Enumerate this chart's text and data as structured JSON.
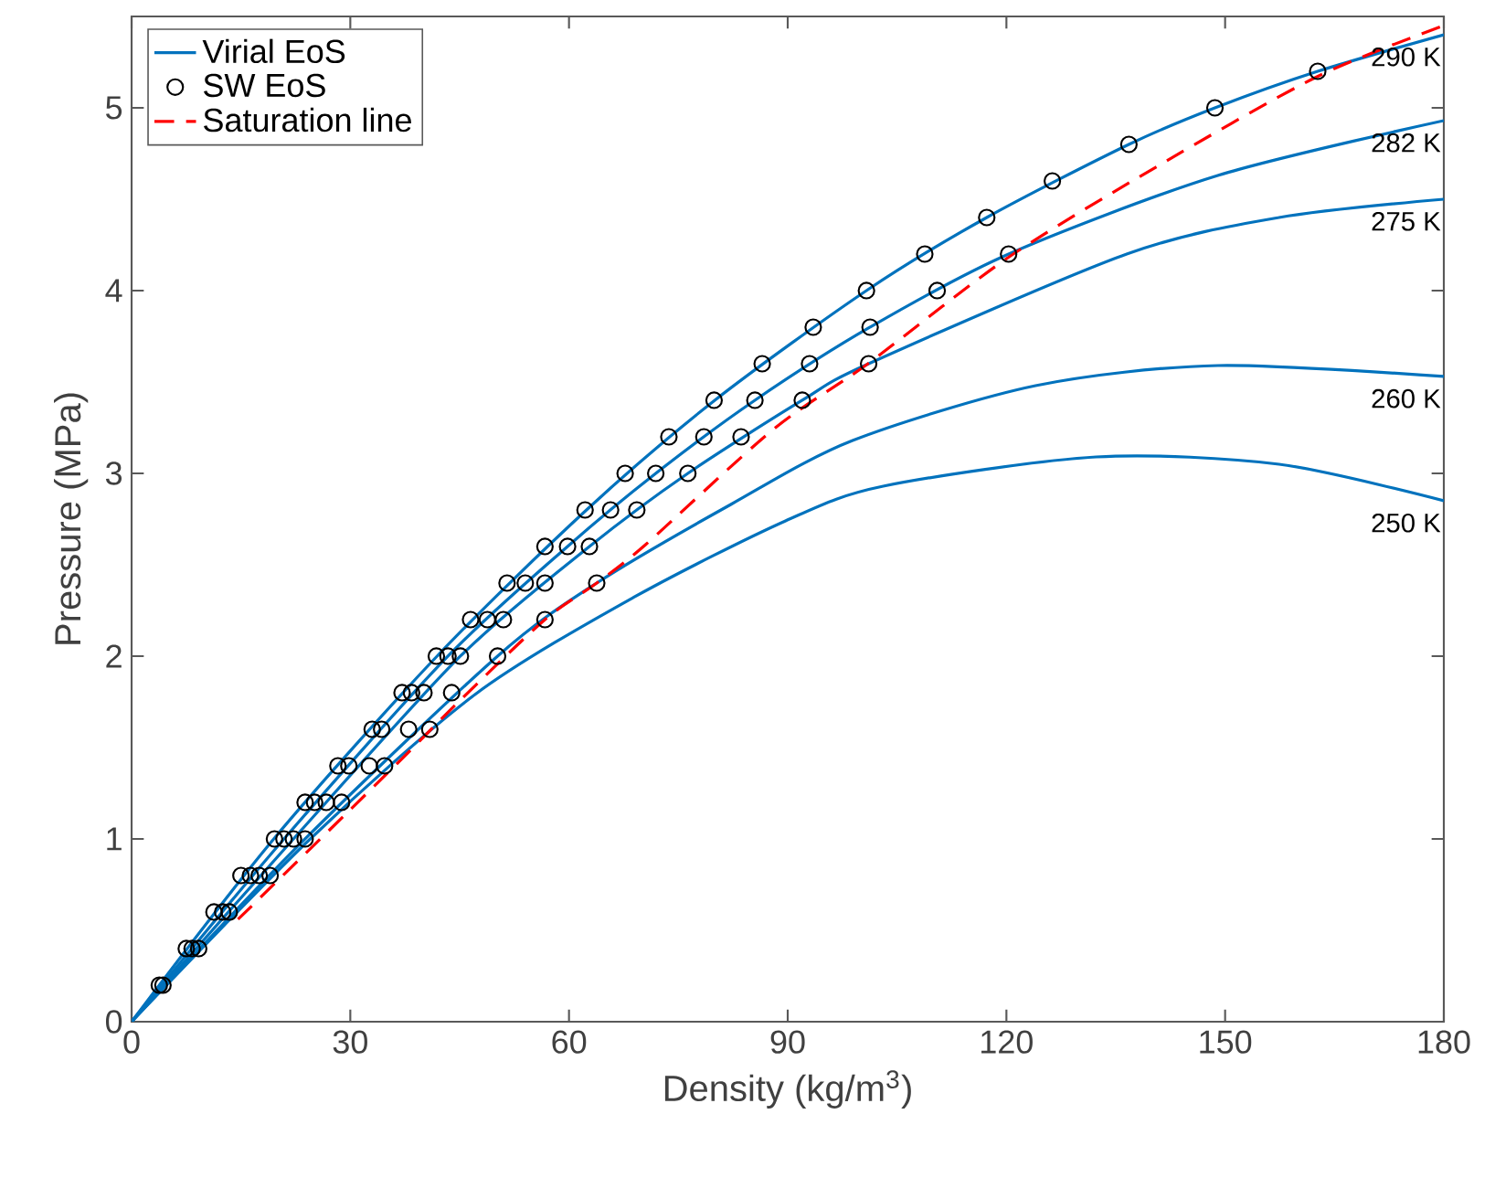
{
  "chart_data": {
    "type": "line",
    "xlabel": "Density (kg/m$^{3}$)",
    "ylabel": "Pressure (MPa)",
    "xlim": [
      0,
      180
    ],
    "ylim": [
      0,
      5.5
    ],
    "xticks": [
      0,
      30,
      60,
      90,
      120,
      150,
      180
    ],
    "yticks": [
      0,
      1,
      2,
      3,
      4,
      5
    ],
    "grid": false,
    "legend": "top left",
    "series": [
      {
        "name": "Virial EoS",
        "color": "#0072bd",
        "line_style": "solid",
        "marker": "none",
        "x": [
          0,
          19.5,
          41.9,
          62.4,
          80,
          100.8,
          117.3,
          136.8,
          148.6,
          162.7,
          180
        ],
        "values": [
          0,
          1.0,
          2.0,
          2.8,
          3.4,
          4.0,
          4.4,
          4.8,
          5.0,
          5.2,
          5.4
        ]
      },
      {
        "color": "#0072bd",
        "line_style": "solid",
        "marker": "none",
        "x": [
          0,
          20.9,
          43.4,
          59.8,
          71.9,
          85.5,
          101.3,
          120.3,
          149,
          180
        ],
        "values": [
          0,
          1.0,
          2.0,
          2.6,
          3.0,
          3.4,
          3.8,
          4.2,
          4.63,
          4.93
        ]
      },
      {
        "color": "#0072bd",
        "line_style": "solid",
        "marker": "none",
        "x": [
          0,
          22.2,
          45.1,
          62.8,
          76.3,
          92,
          101.1,
          136.5,
          157.4,
          180
        ],
        "values": [
          0,
          1.0,
          2.0,
          2.6,
          3.0,
          3.4,
          3.6,
          4.2,
          4.4,
          4.5
        ]
      },
      {
        "color": "#0072bd",
        "line_style": "solid",
        "marker": "none",
        "x": [
          0,
          23.8,
          50.2,
          63.8,
          82.2,
          98.9,
          124,
          149,
          180
        ],
        "values": [
          0,
          1.0,
          2.0,
          2.4,
          2.83,
          3.18,
          3.48,
          3.59,
          3.53
        ]
      },
      {
        "color": "#0072bd",
        "line_style": "solid",
        "marker": "none",
        "x": [
          0,
          24.5,
          47.1,
          68.8,
          89.7,
          103.1,
          132.3,
          157.4,
          180
        ],
        "values": [
          0,
          1.0,
          1.79,
          2.32,
          2.74,
          2.93,
          3.09,
          3.05,
          2.85
        ]
      },
      {
        "name": "SW EoS",
        "type": "scatter",
        "color": "#000000",
        "marker": "circle",
        "x": [
          3.8,
          4.3,
          7.5,
          8.3,
          9.2,
          11.3,
          12.5,
          13.4,
          15,
          16.3,
          17.5,
          19,
          19.6,
          20.9,
          22.2,
          23.8,
          23.8,
          25.1,
          26.7,
          28.8,
          28.3,
          29.8,
          32.6,
          34.7,
          33,
          34.3,
          38,
          40.9,
          37.1,
          38.4,
          40.1,
          43.9,
          41.8,
          43.4,
          45.1,
          50.2,
          46.5,
          48.8,
          51,
          56.7,
          51.5,
          54,
          56.7,
          63.8,
          56.7,
          59.8,
          62.8,
          62.2,
          65.7,
          69.3,
          67.7,
          71.9,
          76.3,
          73.7,
          78.5,
          83.6,
          79.9,
          85.5,
          92,
          86.5,
          93,
          101.1,
          93.5,
          101.3,
          100.8,
          110.5,
          108.8,
          120.3,
          117.3,
          126.3,
          136.8,
          148.6,
          162.7
        ],
        "values": [
          0.2,
          0.2,
          0.4,
          0.4,
          0.4,
          0.6,
          0.6,
          0.6,
          0.8,
          0.8,
          0.8,
          0.8,
          1.0,
          1.0,
          1.0,
          1.0,
          1.2,
          1.2,
          1.2,
          1.2,
          1.4,
          1.4,
          1.4,
          1.4,
          1.6,
          1.6,
          1.6,
          1.6,
          1.8,
          1.8,
          1.8,
          1.8,
          2.0,
          2.0,
          2.0,
          2.0,
          2.2,
          2.2,
          2.2,
          2.2,
          2.4,
          2.4,
          2.4,
          2.4,
          2.6,
          2.6,
          2.6,
          2.8,
          2.8,
          2.8,
          3.0,
          3.0,
          3.0,
          3.2,
          3.2,
          3.2,
          3.4,
          3.4,
          3.4,
          3.6,
          3.6,
          3.6,
          3.8,
          3.8,
          4.0,
          4.0,
          4.2,
          4.2,
          4.4,
          4.6,
          4.8,
          5.0,
          5.2
        ]
      },
      {
        "name": "Saturation line",
        "color": "#ff0000",
        "line_style": "dashed",
        "marker": "none",
        "x": [
          14.6,
          35.1,
          45.1,
          56.7,
          63.8,
          70.5,
          88,
          101,
          120.2,
          140.7,
          162.6,
          180
        ],
        "values": [
          0.56,
          1.36,
          1.76,
          2.2,
          2.4,
          2.61,
          3.24,
          3.6,
          4.18,
          4.68,
          5.17,
          5.45
        ]
      }
    ],
    "annotations": [
      "290 K",
      "282 K",
      "275 K",
      "260 K",
      "250 K"
    ]
  }
}
